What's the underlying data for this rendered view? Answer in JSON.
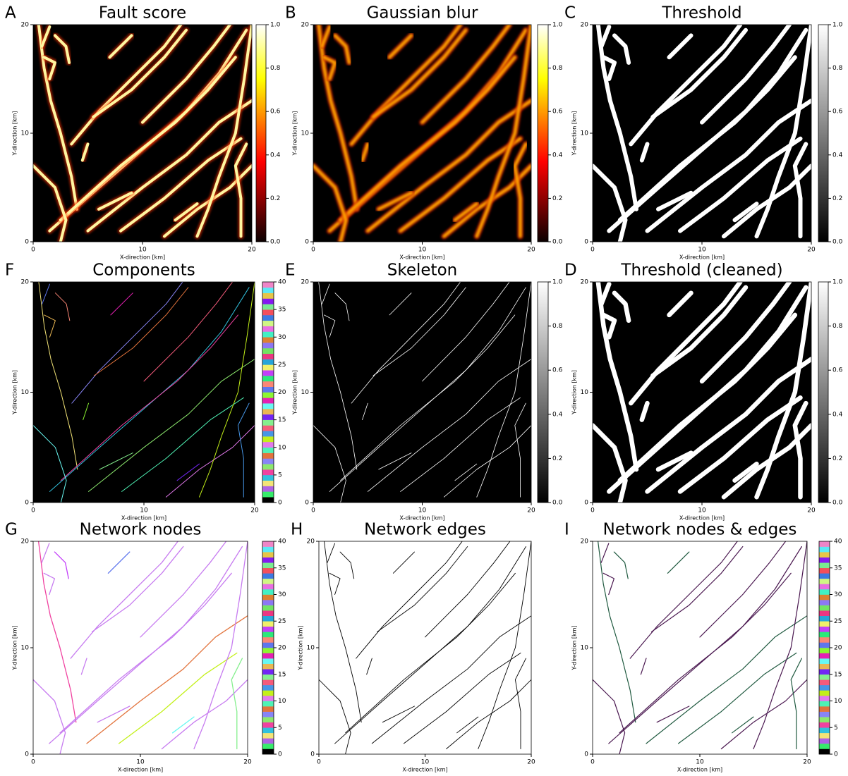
{
  "chart_data": [
    {
      "type": "image",
      "panel": "A",
      "title": "Fault score",
      "xlabel": "X-direction [km]",
      "ylabel": "Y-direction [km]",
      "xlim": [
        0,
        20
      ],
      "ylim": [
        0,
        20
      ],
      "xticks": [
        0,
        10,
        20
      ],
      "yticks": [
        0,
        10,
        20
      ],
      "background": "#000000",
      "colorbar": {
        "cmap": "hot",
        "lim": [
          0,
          1
        ],
        "ticks": [
          {
            "value": 0,
            "label": "0.0"
          },
          0.2,
          0.4,
          0.6,
          0.8,
          {
            "value": 1,
            "label": "1.0"
          }
        ]
      }
    },
    {
      "type": "image",
      "panel": "B",
      "title": "Gaussian blur",
      "xlabel": "X-direction [km]",
      "ylabel": "Y-direction [km]",
      "xlim": [
        0,
        20
      ],
      "ylim": [
        0,
        20
      ],
      "xticks": [
        0,
        10,
        20
      ],
      "yticks": [
        0,
        10,
        20
      ],
      "background": "#000000",
      "colorbar": {
        "cmap": "hot",
        "lim": [
          0,
          1
        ],
        "ticks": [
          {
            "value": 0,
            "label": "0.0"
          },
          0.2,
          0.4,
          0.6,
          0.8,
          {
            "value": 1,
            "label": "1.0"
          }
        ]
      }
    },
    {
      "type": "image",
      "panel": "C",
      "title": "Threshold",
      "xlabel": "X-direction [km]",
      "ylabel": "Y-direction [km]",
      "xlim": [
        0,
        20
      ],
      "ylim": [
        0,
        20
      ],
      "xticks": [
        0,
        10,
        20
      ],
      "yticks": [
        0,
        10,
        20
      ],
      "background": "#000000",
      "colorbar": {
        "cmap": "gray",
        "lim": [
          0,
          1
        ],
        "ticks": [
          {
            "value": 0,
            "label": "0.0"
          },
          0.2,
          0.4,
          0.6,
          0.8,
          {
            "value": 1,
            "label": "1.0"
          }
        ]
      }
    },
    {
      "type": "image",
      "panel": "F",
      "title": "Components",
      "xlabel": "X-direction [km]",
      "ylabel": "Y-direction [km]",
      "xlim": [
        0,
        20
      ],
      "ylim": [
        0,
        20
      ],
      "xticks": [
        0,
        10,
        20
      ],
      "yticks": [
        0,
        10,
        20
      ],
      "background": "#000000",
      "colorbar": {
        "cmap": "categorical",
        "lim": [
          0,
          40
        ],
        "ticks": [
          0,
          5,
          10,
          15,
          20,
          25,
          30,
          35,
          40
        ]
      }
    },
    {
      "type": "image",
      "panel": "E",
      "title": "Skeleton",
      "xlabel": "X-direction [km]",
      "ylabel": "Y-direction [km]",
      "xlim": [
        0,
        20
      ],
      "ylim": [
        0,
        20
      ],
      "xticks": [
        0,
        10,
        20
      ],
      "yticks": [
        0,
        10,
        20
      ],
      "background": "#000000",
      "colorbar": {
        "cmap": "gray",
        "lim": [
          0,
          1
        ],
        "ticks": [
          {
            "value": 0,
            "label": "0.0"
          },
          0.2,
          0.4,
          0.6,
          0.8,
          {
            "value": 1,
            "label": "1.0"
          }
        ]
      }
    },
    {
      "type": "image",
      "panel": "D",
      "title": "Threshold (cleaned)",
      "xlabel": "X-direction [km]",
      "ylabel": "Y-direction [km]",
      "xlim": [
        0,
        20
      ],
      "ylim": [
        0,
        20
      ],
      "xticks": [
        0,
        10,
        20
      ],
      "yticks": [
        0,
        10,
        20
      ],
      "background": "#000000",
      "colorbar": {
        "cmap": "gray",
        "lim": [
          0,
          1
        ],
        "ticks": [
          {
            "value": 0,
            "label": "0.0"
          },
          0.2,
          0.4,
          0.6,
          0.8,
          {
            "value": 1,
            "label": "1.0"
          }
        ]
      }
    },
    {
      "type": "image",
      "panel": "G",
      "title": "Network nodes",
      "xlabel": "X-direction [km]",
      "ylabel": "Y-direction [km]",
      "xlim": [
        0,
        20
      ],
      "ylim": [
        0,
        20
      ],
      "xticks": [
        0,
        10,
        20
      ],
      "yticks": [
        0,
        10,
        20
      ],
      "background": "#ffffff",
      "colorbar": {
        "cmap": "categorical",
        "lim": [
          0,
          40
        ],
        "ticks": [
          0,
          5,
          10,
          15,
          20,
          25,
          30,
          35,
          40
        ]
      }
    },
    {
      "type": "image",
      "panel": "H",
      "title": "Network edges",
      "xlabel": "X-direction [km]",
      "ylabel": "Y-direction [km]",
      "xlim": [
        0,
        20
      ],
      "ylim": [
        0,
        20
      ],
      "xticks": [
        0,
        10,
        20
      ],
      "yticks": [
        0,
        10,
        20
      ],
      "background": "#ffffff"
    },
    {
      "type": "image",
      "panel": "I",
      "title": "Network nodes & edges",
      "xlabel": "X-direction [km]",
      "ylabel": "Y-direction [km]",
      "xlim": [
        0,
        20
      ],
      "ylim": [
        0,
        20
      ],
      "xticks": [
        0,
        10,
        20
      ],
      "yticks": [
        0,
        10,
        20
      ],
      "background": "#ffffff",
      "colorbar": {
        "cmap": "categorical",
        "lim": [
          0,
          40
        ],
        "ticks": [
          0,
          5,
          10,
          15,
          20,
          25,
          30,
          35,
          40
        ]
      }
    }
  ]
}
